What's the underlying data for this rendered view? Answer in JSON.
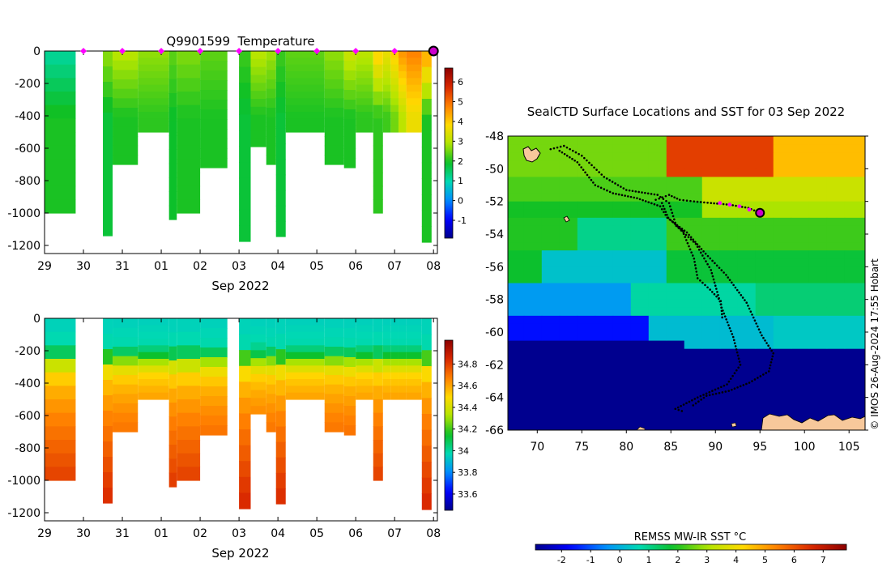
{
  "chart_data": [
    {
      "type": "heatmap",
      "id": "temperature",
      "title": "Q9901599  Temperature",
      "xlabel": "Sep 2022",
      "ylabel": "",
      "x_tick_labels": [
        "29",
        "30",
        "31",
        "01",
        "02",
        "03",
        "04",
        "05",
        "06",
        "07",
        "08"
      ],
      "y_ticks": [
        0,
        -200,
        -400,
        -600,
        -800,
        -1000,
        -1200
      ],
      "y_tick_labels": [
        "0",
        "-200",
        "-400",
        "-600",
        "-800",
        "-1000",
        "-1200"
      ],
      "ylim": [
        -1250,
        0
      ],
      "xlim_days": [
        29,
        39.1
      ],
      "colorbar_range": [
        -1.9,
        6.7
      ],
      "colorbar_ticks": [
        -1,
        0,
        1,
        2,
        3,
        4,
        5,
        6
      ],
      "colorbar_tick_labels": [
        "-1",
        "0",
        "1",
        "2",
        "3",
        "4",
        "5",
        "6"
      ],
      "surfacing_markers_day": [
        30,
        31,
        32,
        33,
        34,
        35,
        36,
        37,
        38
      ],
      "latest_marker_day": 39,
      "profiles": [
        {
          "start": 29.0,
          "end": 29.8,
          "depth": 1000,
          "surf": 1.1,
          "deep": 2.0
        },
        {
          "start": 30.5,
          "end": 30.75,
          "depth": 1140,
          "surf": 2.7,
          "deep": 1.8
        },
        {
          "start": 30.75,
          "end": 31.4,
          "depth": 700,
          "surf": 3.0,
          "deep": 2.0
        },
        {
          "start": 31.4,
          "end": 32.2,
          "depth": 500,
          "surf": 2.7,
          "deep": 2.1
        },
        {
          "start": 32.2,
          "end": 32.4,
          "depth": 1040,
          "surf": 2.4,
          "deep": 1.9
        },
        {
          "start": 32.4,
          "end": 33.0,
          "depth": 1000,
          "surf": 2.6,
          "deep": 2.0
        },
        {
          "start": 33.0,
          "end": 33.7,
          "depth": 720,
          "surf": 2.4,
          "deep": 2.0
        },
        {
          "start": 34.0,
          "end": 34.3,
          "depth": 1175,
          "surf": 2.2,
          "deep": 1.8
        },
        {
          "start": 34.3,
          "end": 34.7,
          "depth": 590,
          "surf": 3.0,
          "deep": 2.0
        },
        {
          "start": 34.7,
          "end": 34.95,
          "depth": 700,
          "surf": 2.8,
          "deep": 2.0
        },
        {
          "start": 34.95,
          "end": 35.2,
          "depth": 1145,
          "surf": 2.2,
          "deep": 1.8
        },
        {
          "start": 35.2,
          "end": 36.2,
          "depth": 500,
          "surf": 2.4,
          "deep": 2.0
        },
        {
          "start": 36.2,
          "end": 36.7,
          "depth": 700,
          "surf": 2.7,
          "deep": 2.0
        },
        {
          "start": 36.7,
          "end": 37.0,
          "depth": 720,
          "surf": 3.2,
          "deep": 2.0
        },
        {
          "start": 37.0,
          "end": 37.45,
          "depth": 500,
          "surf": 3.0,
          "deep": 2.1
        },
        {
          "start": 37.45,
          "end": 37.7,
          "depth": 1000,
          "surf": 4.0,
          "deep": 2.1
        },
        {
          "start": 37.7,
          "end": 37.9,
          "depth": 500,
          "surf": 3.6,
          "deep": 2.2
        },
        {
          "start": 37.9,
          "end": 38.1,
          "depth": 500,
          "surf": 4.0,
          "deep": 2.5
        },
        {
          "start": 38.1,
          "end": 38.3,
          "depth": 500,
          "surf": 4.6,
          "deep": 3.0
        },
        {
          "start": 38.3,
          "end": 38.7,
          "depth": 500,
          "surf": 4.8,
          "deep": 3.6
        },
        {
          "start": 38.7,
          "end": 38.95,
          "depth": 1180,
          "surf": 4.5,
          "deep": 2.0
        }
      ]
    },
    {
      "type": "heatmap",
      "id": "salinity",
      "title": "",
      "xlabel": "Sep 2022",
      "ylabel": "",
      "x_tick_labels": [
        "29",
        "30",
        "31",
        "01",
        "02",
        "03",
        "04",
        "05",
        "06",
        "07",
        "08"
      ],
      "y_ticks": [
        0,
        -200,
        -400,
        -600,
        -800,
        -1000,
        -1200
      ],
      "y_tick_labels": [
        "0",
        "-200",
        "-400",
        "-600",
        "-800",
        "-1000",
        "-1200"
      ],
      "ylim": [
        -1250,
        0
      ],
      "xlim_days": [
        29,
        39.1
      ],
      "colorbar_range": [
        33.45,
        35.02
      ],
      "colorbar_ticks": [
        33.6,
        33.8,
        34,
        34.2,
        34.4,
        34.6,
        34.8
      ],
      "colorbar_tick_labels": [
        "33.6",
        "33.8",
        "34",
        "34.2",
        "34.4",
        "34.6",
        "34.8"
      ],
      "profile_source": "temperature",
      "salinity_profile": {
        "surface": 33.95,
        "points": [
          [
            0,
            33.95
          ],
          [
            150,
            33.98
          ],
          [
            220,
            34.1
          ],
          [
            280,
            34.35
          ],
          [
            350,
            34.5
          ],
          [
            450,
            34.58
          ],
          [
            600,
            34.66
          ],
          [
            800,
            34.73
          ],
          [
            1000,
            34.8
          ],
          [
            1200,
            34.86
          ]
        ]
      }
    },
    {
      "type": "map",
      "id": "sst_map",
      "title": "SealCTD Surface Locations and SST for 03 Sep 2022",
      "x_ticks": [
        70,
        75,
        80,
        85,
        90,
        95,
        100,
        105
      ],
      "x_tick_labels": [
        "70",
        "75",
        "80",
        "85",
        "90",
        "95",
        "100",
        "105"
      ],
      "y_ticks": [
        -48,
        -50,
        -52,
        -54,
        -56,
        -58,
        -60,
        -62,
        -64,
        -66
      ],
      "y_tick_labels": [
        "-48",
        "-50",
        "-52",
        "-54",
        "-56",
        "-58",
        "-60",
        "-62",
        "-64",
        "-66"
      ],
      "xlim": [
        66.7,
        106.8
      ],
      "ylim": [
        -66,
        -48
      ],
      "colorbar_label": "REMSS MW-IR SST °C",
      "colorbar_range": [
        -2.9,
        7.8
      ],
      "colorbar_ticks": [
        -2,
        -1,
        0,
        1,
        2,
        3,
        4,
        5,
        6,
        7
      ],
      "colorbar_tick_labels": [
        "-2",
        "-1",
        "0",
        "1",
        "2",
        "3",
        "4",
        "5",
        "6",
        "7"
      ],
      "latest_position": [
        95.0,
        -52.7
      ],
      "recent_positions": [
        [
          90.5,
          -52.1
        ],
        [
          91.6,
          -52.2
        ],
        [
          92.7,
          -52.3
        ],
        [
          93.8,
          -52.5
        ]
      ],
      "tracks": [
        [
          [
            71.5,
            -48.8
          ],
          [
            73,
            -48.6
          ],
          [
            75,
            -49.2
          ],
          [
            77.5,
            -50.5
          ],
          [
            80,
            -51.3
          ],
          [
            83.5,
            -51.6
          ],
          [
            84.8,
            -52.1
          ],
          [
            85.6,
            -53.5
          ],
          [
            87.8,
            -54.6
          ],
          [
            89.5,
            -56.2
          ],
          [
            90.7,
            -58.5
          ],
          [
            92,
            -60.3
          ],
          [
            92.8,
            -62.0
          ],
          [
            91.3,
            -63.2
          ],
          [
            88,
            -64.0
          ],
          [
            85.5,
            -64.7
          ],
          [
            86.6,
            -64.9
          ]
        ],
        [
          [
            72.5,
            -48.9
          ],
          [
            74.5,
            -49.6
          ],
          [
            76.5,
            -51.0
          ],
          [
            78.5,
            -51.5
          ],
          [
            81.2,
            -51.8
          ],
          [
            83.8,
            -52.3
          ],
          [
            84.6,
            -53.0
          ],
          [
            86.8,
            -53.9
          ],
          [
            88.9,
            -55.2
          ],
          [
            91.2,
            -56.5
          ],
          [
            93.5,
            -58.2
          ],
          [
            95.2,
            -60.2
          ],
          [
            96.5,
            -61.3
          ],
          [
            96.0,
            -62.4
          ],
          [
            93.8,
            -63.1
          ],
          [
            91.5,
            -63.6
          ],
          [
            89.0,
            -63.9
          ],
          [
            87.2,
            -64.6
          ]
        ],
        [
          [
            83.3,
            -51.9
          ],
          [
            84.8,
            -51.6
          ],
          [
            86.0,
            -51.9
          ],
          [
            87.6,
            -52.0
          ],
          [
            89.5,
            -52.1
          ],
          [
            91.6,
            -52.2
          ],
          [
            93.7,
            -52.4
          ],
          [
            95.0,
            -52.7
          ]
        ],
        [
          [
            84.0,
            -52.1
          ],
          [
            84.7,
            -53.0
          ],
          [
            86.3,
            -53.8
          ],
          [
            87.6,
            -55.5
          ],
          [
            88.0,
            -56.7
          ],
          [
            89.4,
            -57.4
          ],
          [
            90.6,
            -58.1
          ],
          [
            90.8,
            -59.3
          ]
        ]
      ]
    }
  ],
  "credit": "© IMOS 26-Aug-2024 17:55 Hobart"
}
